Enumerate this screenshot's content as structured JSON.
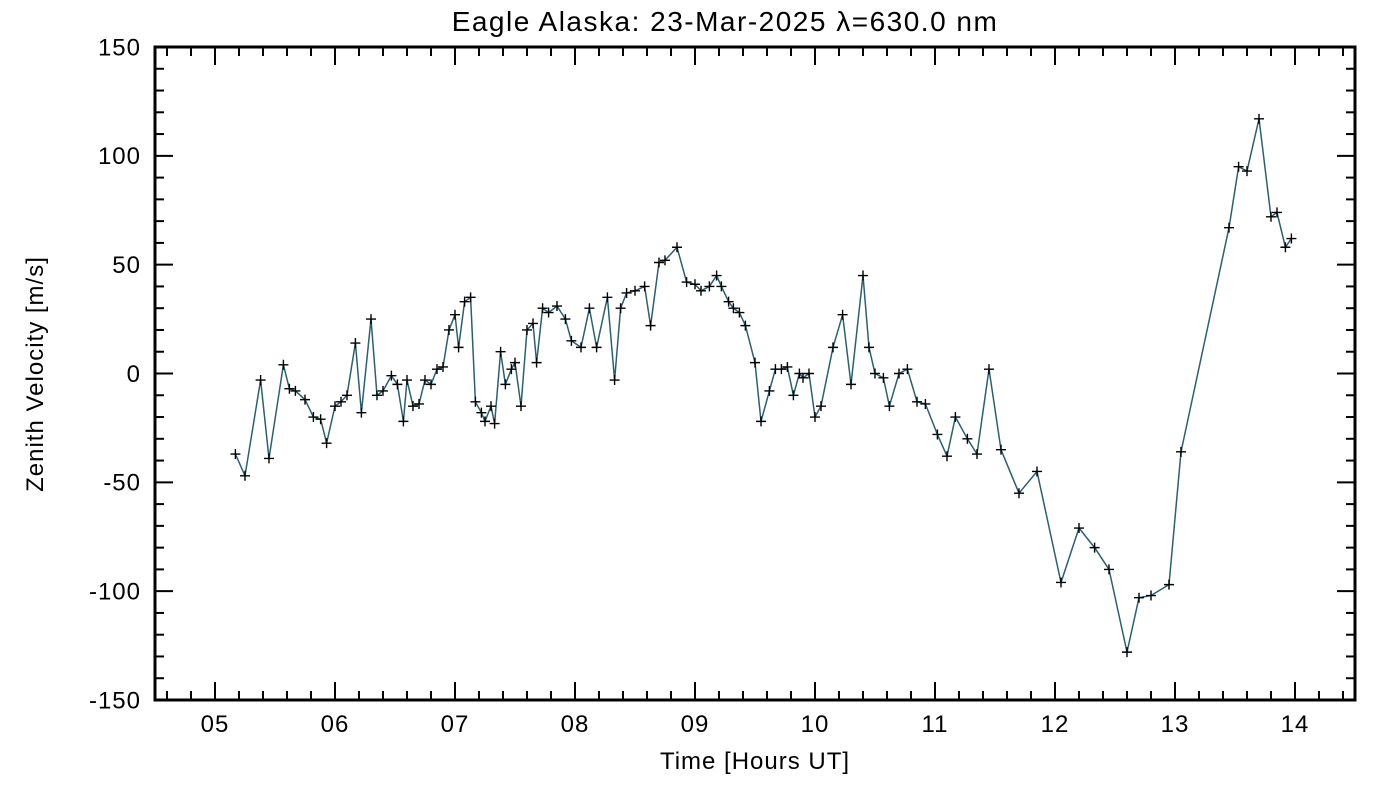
{
  "chart_data": {
    "type": "line",
    "title": "Eagle Alaska: 23-Mar-2025 λ=630.0 nm",
    "xlabel": "Time [Hours UT]",
    "ylabel": "Zenith Velocity [m/s]",
    "xlim": [
      4.5,
      14.5
    ],
    "ylim": [
      -150,
      150
    ],
    "xticks": {
      "values": [
        5,
        6,
        7,
        8,
        9,
        10,
        11,
        12,
        13,
        14
      ],
      "labels": [
        "05",
        "06",
        "07",
        "08",
        "09",
        "10",
        "11",
        "12",
        "13",
        "14"
      ]
    },
    "yticks": {
      "values": [
        -150,
        -100,
        -50,
        0,
        50,
        100,
        150
      ],
      "labels": [
        "-150",
        "-100",
        "-50",
        "0",
        "50",
        "100",
        "150"
      ]
    },
    "x_minor_step": 0.2,
    "y_minor_step": 10,
    "grid": false,
    "legend": "none",
    "marker": "plus",
    "line_color": "#2d5f6f",
    "marker_color": "#000000",
    "axis_color": "#000000",
    "background": "#ffffff",
    "x": [
      5.17,
      5.25,
      5.38,
      5.45,
      5.57,
      5.62,
      5.67,
      5.75,
      5.82,
      5.88,
      5.93,
      6.0,
      6.05,
      6.1,
      6.17,
      6.22,
      6.3,
      6.35,
      6.4,
      6.47,
      6.52,
      6.57,
      6.6,
      6.65,
      6.7,
      6.75,
      6.8,
      6.85,
      6.9,
      6.95,
      7.0,
      7.03,
      7.08,
      7.13,
      7.17,
      7.22,
      7.25,
      7.3,
      7.33,
      7.38,
      7.42,
      7.47,
      7.5,
      7.55,
      7.6,
      7.65,
      7.68,
      7.73,
      7.78,
      7.85,
      7.92,
      7.97,
      8.05,
      8.12,
      8.18,
      8.27,
      8.33,
      8.38,
      8.43,
      8.5,
      8.58,
      8.63,
      8.7,
      8.75,
      8.85,
      8.93,
      9.0,
      9.05,
      9.12,
      9.18,
      9.22,
      9.28,
      9.32,
      9.37,
      9.42,
      9.5,
      9.55,
      9.62,
      9.67,
      9.72,
      9.77,
      9.82,
      9.87,
      9.9,
      9.95,
      10.0,
      10.05,
      10.15,
      10.23,
      10.3,
      10.4,
      10.45,
      10.5,
      10.57,
      10.62,
      10.7,
      10.77,
      10.85,
      10.92,
      11.02,
      11.1,
      11.17,
      11.27,
      11.35,
      11.45,
      11.55,
      11.7,
      11.85,
      12.05,
      12.2,
      12.33,
      12.45,
      12.6,
      12.7,
      12.8,
      12.95,
      13.05,
      13.45,
      13.53,
      13.6,
      13.7,
      13.8,
      13.85,
      13.92,
      13.97
    ],
    "y": [
      -37,
      -47,
      -3,
      -39,
      4,
      -7,
      -8,
      -12,
      -20,
      -21,
      -32,
      -15,
      -13,
      -10,
      14,
      -18,
      25,
      -10,
      -8,
      -1,
      -5,
      -22,
      -3,
      -15,
      -14,
      -3,
      -5,
      2,
      3,
      20,
      27,
      12,
      33,
      35,
      -13,
      -18,
      -22,
      -15,
      -23,
      10,
      -5,
      2,
      5,
      -15,
      20,
      23,
      5,
      30,
      28,
      31,
      25,
      15,
      12,
      30,
      12,
      35,
      -3,
      30,
      37,
      38,
      40,
      22,
      51,
      52,
      58,
      42,
      41,
      38,
      40,
      45,
      40,
      33,
      30,
      28,
      22,
      5,
      -22,
      -8,
      2,
      2,
      3,
      -10,
      0,
      -2,
      0,
      -20,
      -15,
      12,
      27,
      -5,
      45,
      12,
      0,
      -2,
      -15,
      0,
      2,
      -13,
      -14,
      -28,
      -38,
      -20,
      -30,
      -37,
      2,
      -35,
      -55,
      -45,
      -96,
      -71,
      -80,
      -90,
      -128,
      -103,
      -102,
      -97,
      -36,
      67,
      95,
      93,
      117,
      72,
      74,
      58,
      62
    ]
  }
}
